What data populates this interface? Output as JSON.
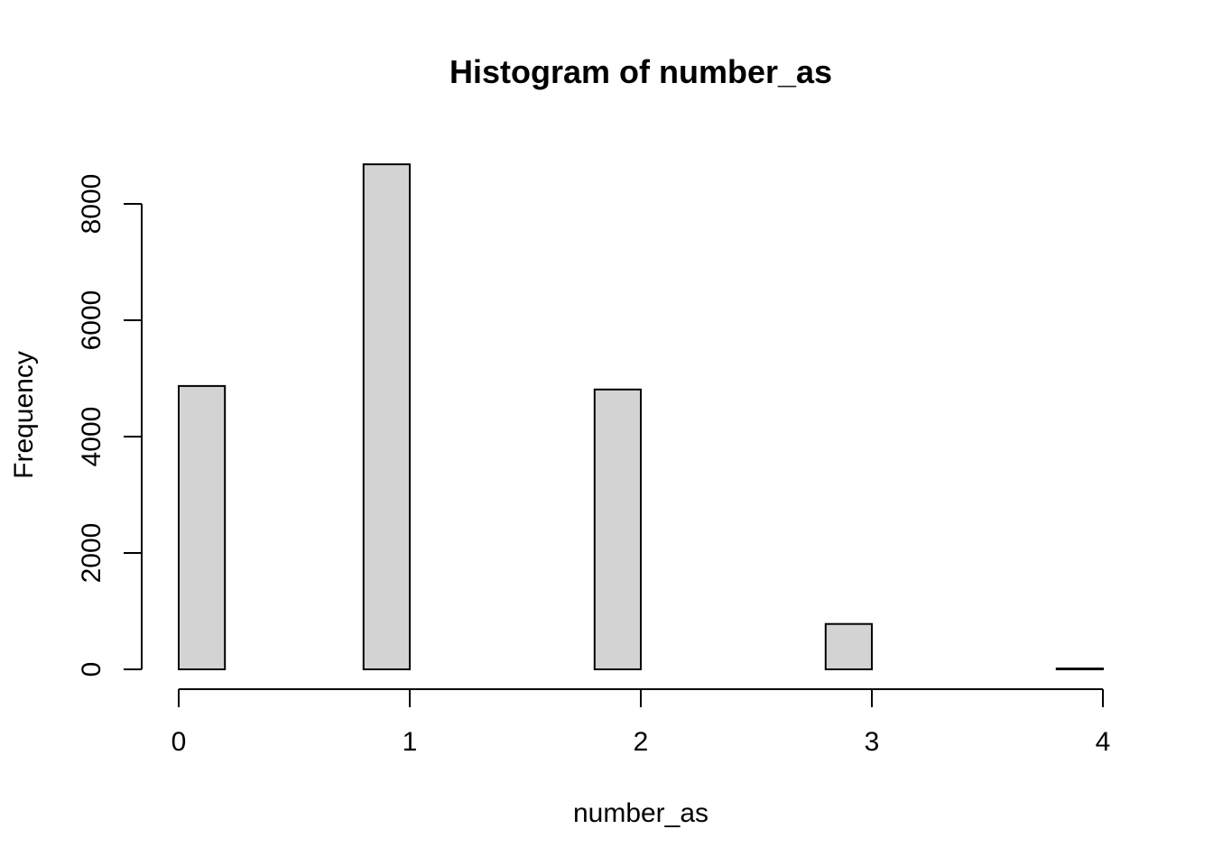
{
  "chart_data": {
    "type": "bar",
    "title": "Histogram of number_as",
    "xlabel": "number_as",
    "ylabel": "Frequency",
    "bin_width": 0.2,
    "bins": [
      {
        "from": 0.0,
        "to": 0.2,
        "count": 4870
      },
      {
        "from": 0.2,
        "to": 0.4,
        "count": 0
      },
      {
        "from": 0.4,
        "to": 0.6,
        "count": 0
      },
      {
        "from": 0.6,
        "to": 0.8,
        "count": 0
      },
      {
        "from": 0.8,
        "to": 1.0,
        "count": 8680
      },
      {
        "from": 1.0,
        "to": 1.2,
        "count": 0
      },
      {
        "from": 1.2,
        "to": 1.4,
        "count": 0
      },
      {
        "from": 1.4,
        "to": 1.6,
        "count": 0
      },
      {
        "from": 1.6,
        "to": 1.8,
        "count": 0
      },
      {
        "from": 1.8,
        "to": 2.0,
        "count": 4810
      },
      {
        "from": 2.0,
        "to": 2.2,
        "count": 0
      },
      {
        "from": 2.2,
        "to": 2.4,
        "count": 0
      },
      {
        "from": 2.4,
        "to": 2.6,
        "count": 0
      },
      {
        "from": 2.6,
        "to": 2.8,
        "count": 0
      },
      {
        "from": 2.8,
        "to": 3.0,
        "count": 780
      },
      {
        "from": 3.0,
        "to": 3.2,
        "count": 0
      },
      {
        "from": 3.2,
        "to": 3.4,
        "count": 0
      },
      {
        "from": 3.4,
        "to": 3.6,
        "count": 0
      },
      {
        "from": 3.6,
        "to": 3.8,
        "count": 0
      },
      {
        "from": 3.8,
        "to": 4.0,
        "count": 15
      }
    ],
    "xlim": [
      0,
      4
    ],
    "ylim": [
      0,
      8680
    ],
    "x_ticks": [
      0,
      1,
      2,
      3,
      4
    ],
    "y_ticks": [
      0,
      2000,
      4000,
      6000,
      8000
    ],
    "grid": false,
    "legend": "none",
    "colors": {
      "bar_fill": "#d3d3d3",
      "bar_stroke": "#000000"
    }
  }
}
